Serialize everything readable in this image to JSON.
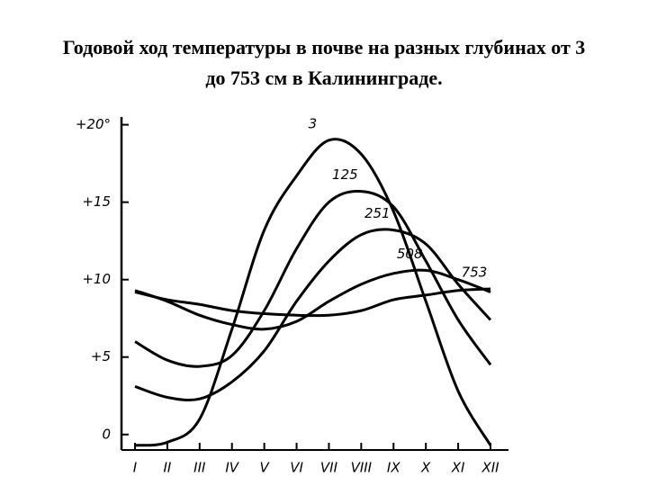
{
  "chart_data": {
    "type": "line",
    "title": "Годовой ход температуры в почве на разных глубинах от 3 до 753 см в Калининграде.",
    "categories": [
      "I",
      "II",
      "III",
      "IV",
      "V",
      "VI",
      "VII",
      "VIII",
      "IX",
      "X",
      "XI",
      "XII"
    ],
    "series": [
      {
        "name": "3",
        "color": "#000000",
        "values": [
          -0.7,
          -0.5,
          1,
          6.8,
          13.2,
          16.7,
          19,
          18.1,
          14.4,
          8.6,
          2.8,
          -0.7
        ]
      },
      {
        "name": "125",
        "color": "#000000",
        "values": [
          6,
          4.8,
          4.4,
          5.1,
          8,
          12,
          15,
          15.7,
          14.7,
          11.2,
          7.4,
          4.5
        ]
      },
      {
        "name": "251",
        "color": "#000000",
        "values": [
          3.1,
          2.4,
          2.3,
          3.4,
          5.4,
          8.6,
          11.2,
          12.9,
          13.2,
          12.3,
          9.7,
          7.4
        ]
      },
      {
        "name": "508",
        "color": "#000000",
        "values": [
          9.3,
          8.6,
          7.7,
          7.1,
          6.8,
          7.3,
          8.6,
          9.7,
          10.4,
          10.6,
          10,
          9.2
        ]
      },
      {
        "name": "753",
        "color": "#000000",
        "values": [
          9.2,
          8.7,
          8.4,
          8,
          7.8,
          7.7,
          7.7,
          8,
          8.7,
          9,
          9.3,
          9.4
        ]
      }
    ],
    "ylim": [
      -1,
      20.5
    ],
    "yticks": [
      0,
      {
        "value": 5,
        "label": "+5"
      },
      {
        "value": 10,
        "label": "+10"
      },
      {
        "value": 15,
        "label": "+15"
      },
      {
        "value": 20,
        "label": "+20°"
      }
    ]
  }
}
